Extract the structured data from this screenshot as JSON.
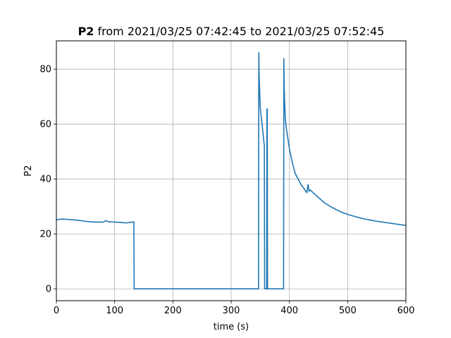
{
  "chart_data": {
    "type": "line",
    "title_bold": "P2",
    "title_rest": " from 2021/03/25 07:42:45 to 2021/03/25 07:52:45",
    "xlabel": "time (s)",
    "ylabel": "P2",
    "xlim": [
      0,
      600
    ],
    "ylim": [
      -4.3,
      90.3
    ],
    "xticks": [
      0,
      100,
      200,
      300,
      400,
      500,
      600
    ],
    "yticks": [
      0,
      20,
      40,
      60,
      80
    ],
    "grid": true,
    "legend": "none",
    "series": [
      {
        "color": "#1f77b4",
        "x": [
          0,
          10,
          20,
          30,
          40,
          50,
          60,
          70,
          80,
          85,
          90,
          100,
          110,
          120,
          125,
          130,
          133,
          133.5,
          200,
          300,
          347,
          347.5,
          348,
          349,
          350,
          352,
          354,
          356,
          357,
          357.5,
          360,
          361,
          361.5,
          362,
          362.5,
          390,
          390.5,
          391,
          392,
          393,
          395,
          398,
          400,
          405,
          410,
          415,
          420,
          425,
          430,
          432,
          434,
          436,
          440,
          450,
          460,
          470,
          480,
          490,
          500,
          510,
          520,
          530,
          540,
          550,
          560,
          570,
          580,
          590,
          600
        ],
        "y": [
          25.2,
          25.4,
          25.3,
          25.1,
          24.9,
          24.6,
          24.4,
          24.3,
          24.3,
          24.8,
          24.4,
          24.3,
          24.2,
          24.0,
          24.2,
          24.3,
          24.4,
          0.0,
          0.0,
          0.0,
          0.0,
          86.0,
          78.0,
          72.0,
          66.0,
          62.0,
          58.0,
          54.0,
          52.0,
          0.0,
          0.0,
          0.0,
          65.5,
          65.5,
          0.0,
          0.0,
          83.8,
          74.0,
          67.0,
          62.0,
          58.0,
          54.0,
          51.0,
          46.0,
          42.0,
          40.0,
          38.0,
          36.5,
          35.0,
          38.0,
          35.5,
          36.0,
          35.2,
          33.2,
          31.4,
          30.0,
          28.9,
          27.9,
          27.1,
          26.5,
          25.9,
          25.4,
          25.0,
          24.6,
          24.3,
          24.0,
          23.7,
          23.4,
          23.1
        ]
      }
    ]
  }
}
